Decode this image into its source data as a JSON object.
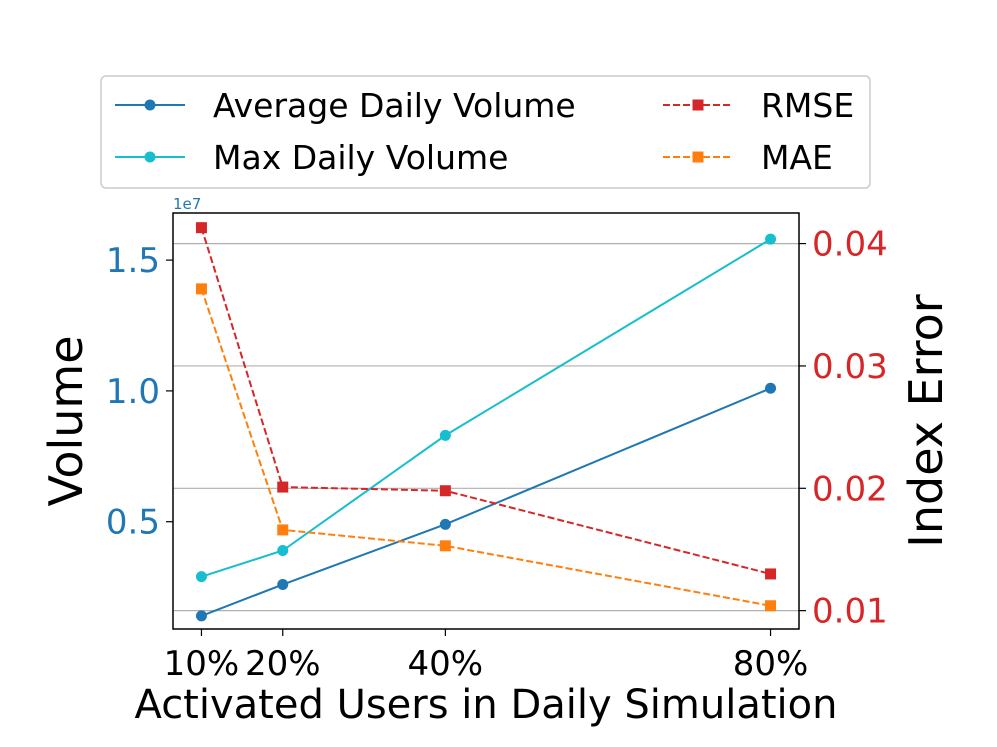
{
  "chart_data": {
    "type": "line",
    "xlabel": "Activated Users in Daily Simulation",
    "ylabel_left": "Volume",
    "ylabel_right": "Index Error",
    "left_axis_offset_text": "1e7",
    "x": [
      10,
      20,
      40,
      80
    ],
    "x_tick_labels": [
      "10%",
      "20%",
      "40%",
      "80%"
    ],
    "xlim": [
      6.5,
      83.5
    ],
    "left_ylim": [
      0.09,
      1.68
    ],
    "left_ticks": [
      0.5,
      1.0,
      1.5
    ],
    "left_tick_labels": [
      "0.5",
      "1.0",
      "1.5"
    ],
    "right_ylim": [
      0.0085,
      0.0425
    ],
    "right_ticks": [
      0.01,
      0.02,
      0.03,
      0.04
    ],
    "right_tick_labels": [
      "0.01",
      "0.02",
      "0.03",
      "0.04"
    ],
    "grid_axis": "right-y",
    "legend_position": "top-center (above plot)",
    "series": [
      {
        "name": "Average Daily Volume",
        "axis": "left",
        "color": "#1f77b4",
        "linestyle": "solid",
        "marker": "circle",
        "values": [
          0.14,
          0.26,
          0.49,
          1.01
        ]
      },
      {
        "name": "Max Daily Volume",
        "axis": "left",
        "color": "#17becf",
        "linestyle": "solid",
        "marker": "circle",
        "values": [
          0.29,
          0.39,
          0.83,
          1.58
        ]
      },
      {
        "name": "RMSE",
        "axis": "right",
        "color": "#d62728",
        "linestyle": "dashed",
        "marker": "square",
        "values": [
          0.0413,
          0.0201,
          0.0198,
          0.013
        ]
      },
      {
        "name": "MAE",
        "axis": "right",
        "color": "#ff7f0e",
        "linestyle": "dashed",
        "marker": "square",
        "values": [
          0.0363,
          0.0166,
          0.0153,
          0.0104
        ]
      }
    ],
    "colors": {
      "left_axis": "#1f77b4",
      "right_axis": "#d62728",
      "text": "#000000",
      "grid": "#b0b0b0"
    }
  }
}
